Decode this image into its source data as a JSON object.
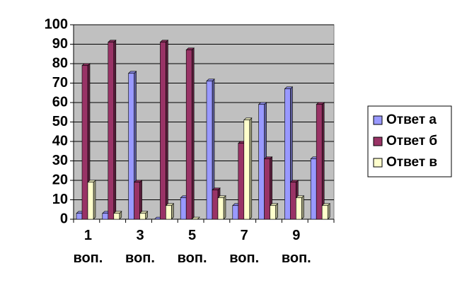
{
  "chart_data": {
    "type": "bar",
    "categories": [
      "1 воп.",
      null,
      "3 воп.",
      null,
      "5 воп.",
      null,
      "7 воп.",
      null,
      "9 воп.",
      null
    ],
    "series": [
      {
        "name": "Ответ а",
        "color": "#9999ff",
        "values": [
          3,
          3,
          75,
          0,
          11,
          71,
          7,
          59,
          67,
          31
        ]
      },
      {
        "name": "Ответ б",
        "color": "#993366",
        "values": [
          79,
          91,
          19,
          91,
          87,
          15,
          39,
          31,
          19,
          59
        ]
      },
      {
        "name": "Ответ в",
        "color": "#ffffcc",
        "values": [
          19,
          3,
          3,
          7,
          0,
          11,
          51,
          7,
          11,
          7
        ]
      }
    ],
    "ylim": [
      0,
      100
    ],
    "yticks": [
      0,
      10,
      20,
      30,
      40,
      50,
      60,
      70,
      80,
      90,
      100
    ],
    "grid": true,
    "legend": "right"
  }
}
